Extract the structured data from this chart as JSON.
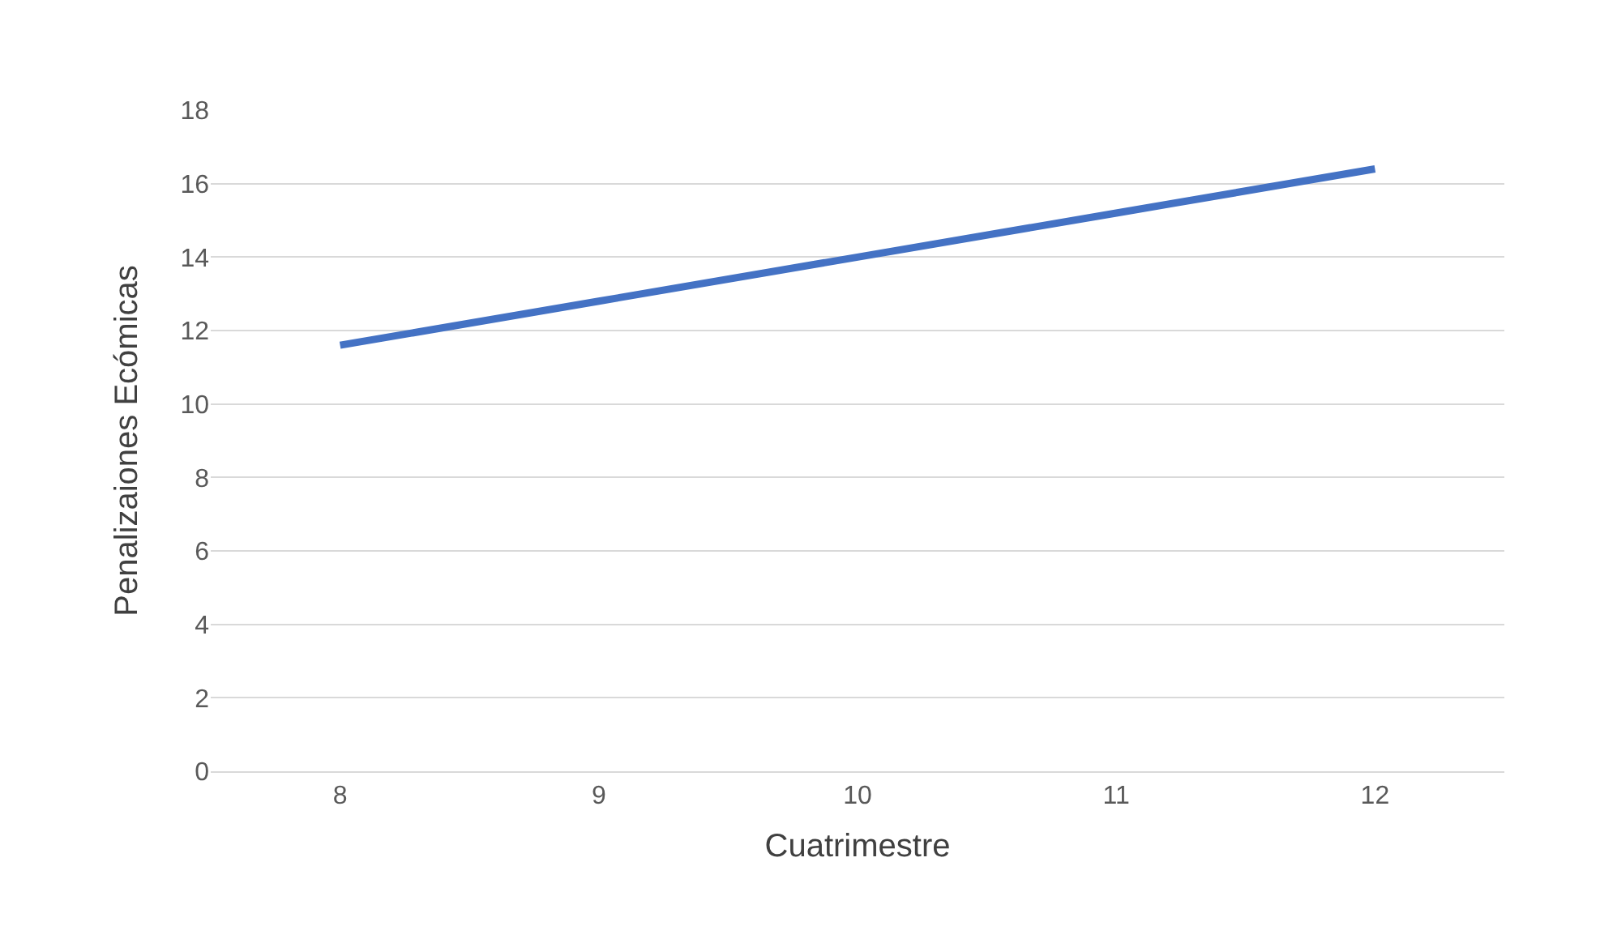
{
  "chart_data": {
    "type": "line",
    "xlabel": "Cuatrimestre",
    "ylabel": "Penalizaiones Ecómicas",
    "categories": [
      "8",
      "9",
      "10",
      "11",
      "12"
    ],
    "series": [
      {
        "color": "#4472c4",
        "values": [
          11.6,
          12.8,
          14.0,
          15.2,
          16.4
        ]
      }
    ],
    "ylim": [
      0,
      18
    ],
    "yticks": [
      0,
      2,
      4,
      6,
      8,
      10,
      12,
      14,
      16,
      18
    ],
    "grid": "y",
    "marker": "none",
    "line_style": "solid"
  }
}
